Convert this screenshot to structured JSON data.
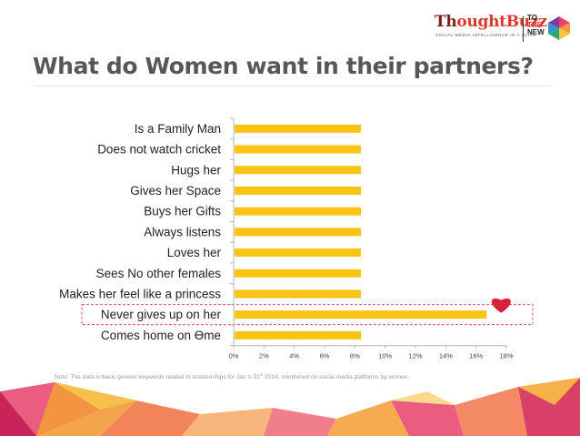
{
  "brand": {
    "name_part1": "Th",
    "name_part2": "oughtBuzz",
    "tagline": "SOCIAL MEDIA INTELLIGENCE IN A CLICK",
    "partner_line1": "TO",
    "partner_line2": "THE",
    "partner_line3": "NEW"
  },
  "slide": {
    "title": "What do Women want in their partners?"
  },
  "note": {
    "text_before": "Note: The data is basis generic keywords related to relationships for Jan 1-31",
    "superscript": "st",
    "text_after": " 2014, mentioned on social media platforms by women."
  },
  "colors": {
    "bar": "#f9c413",
    "highlight_border": "#e05070",
    "heart": "#d8213a",
    "title": "#575757"
  },
  "chart_data": {
    "type": "bar",
    "orientation": "horizontal",
    "categories": [
      "Is a Family Man",
      "Does not watch cricket",
      "Hugs her",
      "Gives her Space",
      "Buys her Gifts",
      "Always listens",
      "Loves her",
      "Sees No other females",
      "Makes her feel like a princess",
      "Never gives up on her",
      "Comes home on Ɵme"
    ],
    "values": [
      8.4,
      8.4,
      8.4,
      8.4,
      8.4,
      8.4,
      8.4,
      8.4,
      8.4,
      16.7,
      8.4
    ],
    "xlim": [
      0,
      18
    ],
    "xticks": [
      "0%",
      "2%",
      "4%",
      "6%",
      "8%",
      "10%",
      "12%",
      "14%",
      "16%",
      "18%"
    ],
    "xtick_values": [
      0,
      2,
      4,
      6,
      8,
      10,
      12,
      14,
      16,
      18
    ],
    "highlighted_category": "Never gives up on her",
    "grid": false,
    "legend": "none"
  }
}
